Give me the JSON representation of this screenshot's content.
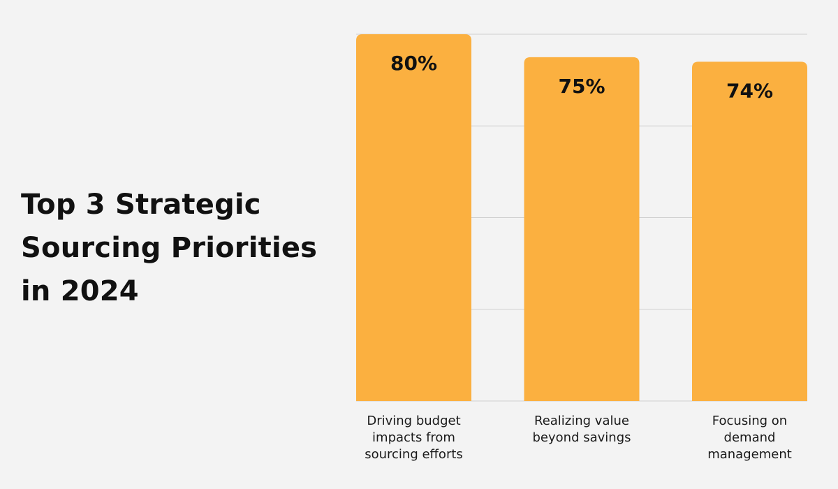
{
  "chart_data": {
    "type": "bar",
    "title_lines": [
      "Top 3 Strategic",
      "Sourcing Priorities",
      "in 2024"
    ],
    "categories": [
      [
        "Driving budget",
        "impacts from",
        "sourcing efforts"
      ],
      [
        "Realizing value",
        "beyond savings"
      ],
      [
        "Focusing on",
        "demand",
        "management"
      ]
    ],
    "values": [
      80,
      75,
      74
    ],
    "value_labels": [
      "80%",
      "75%",
      "74%"
    ],
    "ylim": [
      0,
      80
    ],
    "grid": true,
    "colors": {
      "bar": "#fbb040",
      "grid": "#cfcfcf",
      "background": "#f3f3f3"
    }
  }
}
